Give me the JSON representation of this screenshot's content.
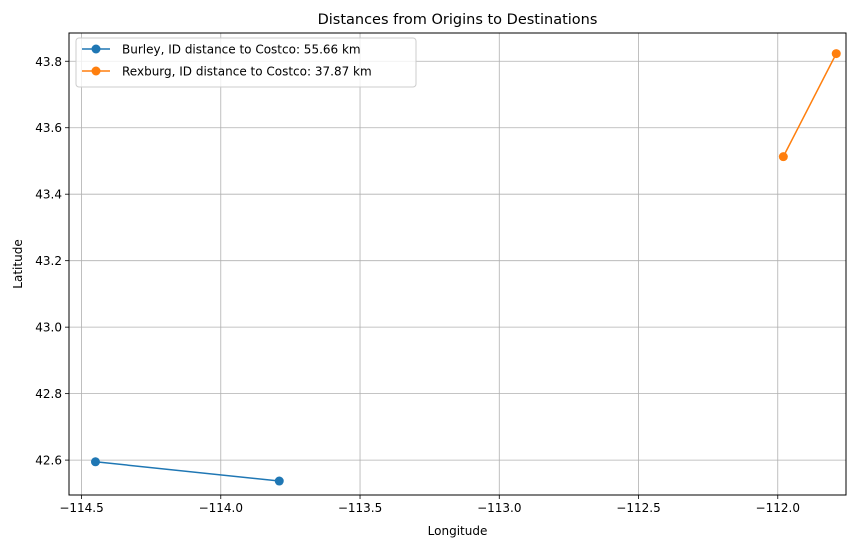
{
  "chart_data": {
    "type": "line",
    "title": "Distances from Origins to Destinations",
    "xlabel": "Longitude",
    "ylabel": "Latitude",
    "xlim": [
      -114.545,
      -111.755
    ],
    "ylim": [
      42.495,
      43.885
    ],
    "xticks": [
      -114.5,
      -114.0,
      -113.5,
      -113.0,
      -112.5,
      -112.0
    ],
    "xtick_labels": [
      "−114.5",
      "−114.0",
      "−113.5",
      "−113.0",
      "−112.5",
      "−112.0"
    ],
    "yticks": [
      42.6,
      42.8,
      43.0,
      43.2,
      43.4,
      43.6,
      43.8
    ],
    "ytick_labels": [
      "42.6",
      "42.8",
      "43.0",
      "43.2",
      "43.4",
      "43.6",
      "43.8"
    ],
    "grid": true,
    "legend_position": "top-left",
    "series": [
      {
        "name": "Burley, ID distance to Costco: 55.66 km",
        "color": "#1f77b4",
        "x": [
          -114.45,
          -113.79
        ],
        "y": [
          42.595,
          42.537
        ]
      },
      {
        "name": "Rexburg, ID distance to Costco: 37.87 km",
        "color": "#ff7f0e",
        "x": [
          -111.98,
          -111.79
        ],
        "y": [
          43.513,
          43.823
        ]
      }
    ]
  }
}
